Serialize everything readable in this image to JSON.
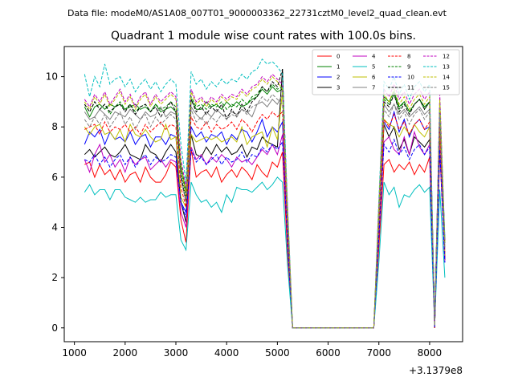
{
  "figure": {
    "suptitle": "Data file: modeM0/AS1A08_007T01_9000003362_22731cztM0_level2_quad_clean.evt",
    "title": "Quadrant 1 module wise count rates with 100.0s bins.",
    "x_offset_label": "+3.1379e8"
  },
  "chart_data": {
    "type": "line",
    "title": "Quadrant 1 module wise count rates with 100.0s bins.",
    "xlabel": "",
    "ylabel": "",
    "x_offset": 313790000,
    "xlim": [
      800,
      8650
    ],
    "ylim": [
      -0.55,
      11.2
    ],
    "xticks": [
      1000,
      2000,
      3000,
      4000,
      5000,
      6000,
      7000,
      8000
    ],
    "yticks": [
      0,
      2,
      4,
      6,
      8,
      10
    ],
    "grid": false,
    "legend_position": "top-right",
    "legend_columns": 4,
    "x": [
      1200,
      1300,
      1400,
      1500,
      1600,
      1700,
      1800,
      1900,
      2000,
      2100,
      2200,
      2300,
      2400,
      2500,
      2600,
      2700,
      2800,
      2900,
      3000,
      3100,
      3200,
      3300,
      3400,
      3500,
      3600,
      3700,
      3800,
      3900,
      4000,
      4100,
      4200,
      4300,
      4400,
      4500,
      4600,
      4700,
      4800,
      4900,
      5000,
      5100,
      5200,
      5300,
      6900,
      7000,
      7100,
      7200,
      7300,
      7400,
      7500,
      7600,
      7700,
      7800,
      7900,
      8000,
      8100,
      8200,
      8300
    ],
    "series": [
      {
        "name": "0",
        "color": "#ff0000",
        "dash": "solid",
        "values": [
          6.5,
          6.6,
          6.0,
          6.5,
          6.1,
          6.3,
          5.9,
          6.3,
          5.8,
          6.1,
          6.2,
          5.8,
          6.4,
          6.0,
          5.8,
          5.8,
          6.1,
          6.6,
          6.4,
          4.3,
          3.4,
          7.1,
          6.0,
          6.2,
          6.3,
          6.0,
          6.4,
          5.8,
          6.1,
          6.3,
          6.0,
          6.4,
          6.2,
          5.9,
          6.5,
          6.2,
          6.0,
          6.6,
          6.4,
          7.0,
          3.0,
          0.0,
          0.0,
          3.2,
          6.5,
          6.7,
          6.2,
          6.5,
          6.3,
          6.6,
          6.1,
          6.5,
          6.2,
          6.8,
          0.0,
          7.0,
          2.8
        ]
      },
      {
        "name": "1",
        "color": "#008000",
        "dash": "solid",
        "values": [
          8.8,
          8.4,
          8.8,
          8.9,
          8.7,
          8.9,
          8.8,
          8.9,
          8.7,
          8.8,
          8.9,
          8.7,
          8.8,
          8.6,
          8.9,
          8.6,
          8.7,
          8.8,
          8.6,
          6.5,
          5.4,
          9.1,
          8.7,
          8.7,
          9.0,
          8.8,
          8.9,
          8.7,
          9.0,
          8.8,
          9.0,
          8.8,
          8.9,
          9.1,
          9.2,
          9.5,
          9.3,
          9.6,
          9.4,
          9.5,
          4.5,
          0.0,
          0.0,
          4.7,
          9.2,
          9.0,
          9.4,
          8.8,
          9.0,
          8.6,
          8.9,
          9.1,
          8.8,
          9.0,
          0.2,
          8.8,
          3.5
        ]
      },
      {
        "name": "2",
        "color": "#0000ff",
        "dash": "solid",
        "values": [
          7.3,
          7.8,
          7.6,
          7.9,
          7.3,
          7.8,
          7.5,
          7.6,
          7.4,
          7.8,
          7.3,
          7.6,
          7.7,
          7.2,
          7.6,
          7.6,
          7.3,
          7.7,
          7.6,
          5.0,
          4.6,
          8.0,
          7.6,
          7.8,
          7.4,
          7.7,
          7.6,
          7.8,
          7.3,
          7.7,
          7.5,
          7.9,
          7.8,
          7.4,
          7.8,
          8.3,
          7.6,
          8.0,
          7.8,
          8.2,
          3.8,
          0.0,
          0.0,
          3.9,
          8.2,
          7.9,
          8.6,
          7.8,
          8.3,
          7.6,
          8.1,
          8.3,
          7.9,
          8.0,
          0.0,
          8.0,
          2.9
        ]
      },
      {
        "name": "3",
        "color": "#000000",
        "dash": "solid",
        "values": [
          6.9,
          7.1,
          6.8,
          7.0,
          7.2,
          6.9,
          6.8,
          7.0,
          7.3,
          6.9,
          6.8,
          6.7,
          7.3,
          7.0,
          6.9,
          6.6,
          7.0,
          7.3,
          7.0,
          5.0,
          4.2,
          7.7,
          6.9,
          6.8,
          7.2,
          6.9,
          7.3,
          7.0,
          7.2,
          6.9,
          7.0,
          7.3,
          6.8,
          7.2,
          7.1,
          7.6,
          7.4,
          7.3,
          7.2,
          10.3,
          3.6,
          0.0,
          0.0,
          3.7,
          8.1,
          7.6,
          8.0,
          7.1,
          7.5,
          6.9,
          7.6,
          7.4,
          7.2,
          7.5,
          0.0,
          7.6,
          2.7
        ]
      },
      {
        "name": "4",
        "color": "#c000c0",
        "dash": "solid",
        "values": [
          6.7,
          6.2,
          6.9,
          7.3,
          6.6,
          6.9,
          6.4,
          6.7,
          6.2,
          6.8,
          6.5,
          6.7,
          6.8,
          6.3,
          6.5,
          6.7,
          6.4,
          6.7,
          6.6,
          4.6,
          4.0,
          7.2,
          6.7,
          6.9,
          6.5,
          6.8,
          6.6,
          6.9,
          6.7,
          6.4,
          6.8,
          6.6,
          6.7,
          6.5,
          6.8,
          7.1,
          6.9,
          7.3,
          6.9,
          7.7,
          3.5,
          0.0,
          0.0,
          3.6,
          7.4,
          7.6,
          7.1,
          6.9,
          7.6,
          6.9,
          7.8,
          7.2,
          6.9,
          7.3,
          0.0,
          7.3,
          2.6
        ]
      },
      {
        "name": "5",
        "color": "#00bfbf",
        "dash": "solid",
        "values": [
          5.4,
          5.7,
          5.3,
          5.5,
          5.5,
          5.1,
          5.5,
          5.5,
          5.2,
          5.1,
          5.0,
          5.2,
          5.0,
          5.1,
          5.1,
          5.4,
          5.2,
          5.3,
          5.3,
          3.5,
          3.1,
          5.8,
          5.3,
          5.0,
          5.1,
          4.8,
          5.0,
          4.6,
          5.3,
          5.0,
          5.6,
          5.5,
          5.5,
          5.4,
          5.6,
          5.8,
          5.5,
          5.7,
          6.0,
          5.8,
          2.5,
          0.0,
          0.0,
          2.6,
          5.8,
          5.3,
          5.6,
          4.8,
          5.3,
          5.2,
          5.5,
          5.7,
          5.4,
          5.6,
          0.1,
          5.5,
          2.0
        ]
      },
      {
        "name": "6",
        "color": "#bfbf00",
        "dash": "solid",
        "values": [
          8.0,
          7.7,
          8.0,
          8.1,
          7.7,
          7.8,
          7.5,
          7.9,
          7.4,
          8.1,
          7.7,
          7.6,
          7.9,
          7.6,
          7.4,
          7.5,
          8.1,
          7.5,
          7.6,
          5.2,
          4.8,
          7.7,
          7.4,
          7.5,
          7.6,
          7.5,
          7.6,
          7.4,
          7.5,
          7.6,
          7.4,
          8.0,
          7.3,
          7.6,
          7.7,
          7.8,
          7.2,
          8.0,
          7.5,
          9.4,
          3.9,
          0.0,
          0.0,
          4.0,
          8.3,
          8.1,
          8.0,
          7.6,
          8.0,
          7.7,
          8.1,
          7.8,
          7.6,
          8.0,
          0.0,
          8.0,
          2.9
        ]
      },
      {
        "name": "7",
        "color": "#808080",
        "dash": "solid",
        "values": [
          8.6,
          8.3,
          8.4,
          8.7,
          8.5,
          8.3,
          8.6,
          8.5,
          8.4,
          8.7,
          8.5,
          8.3,
          8.6,
          8.4,
          8.5,
          8.8,
          8.4,
          8.6,
          8.5,
          6.0,
          5.0,
          8.8,
          8.5,
          8.3,
          8.6,
          8.4,
          8.7,
          8.5,
          8.4,
          8.6,
          8.5,
          8.7,
          8.6,
          8.4,
          8.9,
          9.0,
          8.8,
          9.1,
          8.9,
          9.3,
          4.2,
          0.0,
          0.0,
          4.3,
          8.9,
          8.6,
          8.9,
          8.5,
          8.7,
          8.4,
          8.6,
          8.8,
          8.5,
          8.7,
          0.1,
          8.6,
          3.2
        ]
      },
      {
        "name": "8",
        "color": "#ff0000",
        "dash": "dashed",
        "values": [
          7.9,
          8.0,
          8.1,
          7.7,
          8.2,
          7.8,
          8.0,
          7.9,
          8.1,
          7.8,
          8.0,
          7.7,
          8.1,
          7.8,
          8.0,
          8.2,
          7.9,
          8.1,
          8.0,
          5.6,
          4.8,
          8.4,
          8.0,
          7.9,
          8.2,
          7.8,
          8.1,
          7.9,
          8.0,
          8.2,
          7.9,
          8.3,
          8.1,
          7.8,
          8.2,
          8.5,
          8.3,
          8.6,
          8.4,
          8.6,
          3.9,
          0.0,
          0.0,
          4.0,
          8.3,
          8.0,
          8.5,
          7.9,
          8.2,
          7.7,
          8.1,
          8.3,
          7.9,
          8.2,
          0.0,
          8.1,
          3.0
        ]
      },
      {
        "name": "9",
        "color": "#008000",
        "dash": "dashed",
        "values": [
          8.9,
          8.6,
          9.0,
          8.7,
          8.9,
          8.5,
          8.8,
          9.0,
          8.7,
          8.9,
          8.6,
          8.8,
          8.9,
          8.6,
          8.9,
          8.7,
          8.8,
          9.0,
          8.8,
          6.3,
          5.2,
          9.2,
          8.8,
          8.9,
          8.7,
          8.9,
          8.8,
          9.0,
          8.7,
          8.9,
          8.8,
          9.1,
          8.9,
          9.2,
          9.3,
          9.6,
          9.4,
          9.7,
          9.5,
          9.6,
          4.5,
          0.0,
          0.0,
          4.6,
          9.1,
          8.9,
          9.3,
          8.7,
          9.0,
          8.6,
          8.9,
          9.1,
          8.7,
          9.0,
          0.2,
          8.9,
          3.4
        ]
      },
      {
        "name": "10",
        "color": "#0000ff",
        "dash": "dashed",
        "values": [
          6.7,
          6.6,
          6.9,
          6.5,
          6.8,
          6.4,
          6.7,
          6.9,
          6.5,
          6.8,
          6.4,
          6.7,
          6.9,
          6.5,
          6.8,
          6.6,
          6.7,
          6.9,
          6.8,
          5.0,
          4.4,
          7.1,
          6.6,
          6.8,
          6.5,
          6.7,
          6.9,
          6.5,
          6.8,
          6.6,
          6.7,
          7.0,
          6.6,
          6.9,
          6.8,
          7.2,
          7.0,
          7.3,
          7.1,
          7.4,
          3.5,
          0.0,
          0.0,
          3.6,
          7.3,
          7.0,
          7.5,
          6.9,
          7.2,
          6.7,
          7.1,
          7.3,
          6.9,
          7.2,
          0.0,
          7.1,
          2.6
        ]
      },
      {
        "name": "11",
        "color": "#000000",
        "dash": "dashed",
        "values": [
          8.9,
          8.6,
          9.0,
          8.7,
          8.9,
          8.6,
          8.8,
          8.9,
          8.6,
          8.9,
          8.5,
          8.8,
          8.9,
          8.6,
          8.8,
          8.4,
          8.7,
          9.0,
          8.6,
          6.1,
          5.0,
          9.1,
          8.6,
          8.8,
          8.5,
          8.8,
          8.6,
          8.9,
          8.3,
          8.7,
          8.4,
          8.9,
          8.6,
          9.0,
          9.2,
          9.6,
          9.4,
          9.8,
          9.6,
          10.3,
          4.6,
          0.0,
          0.0,
          4.7,
          9.0,
          8.8,
          9.3,
          8.6,
          8.9,
          8.5,
          8.9,
          9.1,
          8.7,
          9.0,
          0.2,
          8.8,
          3.3
        ]
      },
      {
        "name": "12",
        "color": "#c000c0",
        "dash": "dashed",
        "values": [
          9.1,
          8.8,
          9.3,
          9.0,
          9.4,
          8.9,
          9.2,
          9.5,
          9.0,
          9.3,
          8.8,
          9.2,
          9.4,
          8.9,
          9.3,
          9.0,
          9.2,
          9.4,
          9.2,
          6.7,
          5.6,
          9.5,
          9.0,
          9.2,
          8.9,
          9.2,
          9.0,
          9.3,
          9.1,
          9.3,
          9.2,
          9.5,
          9.3,
          9.6,
          9.7,
          10.0,
          9.8,
          10.1,
          9.9,
          9.7,
          4.8,
          0.0,
          0.0,
          4.9,
          9.5,
          9.2,
          9.7,
          9.1,
          9.4,
          8.9,
          9.3,
          9.5,
          9.1,
          9.4,
          0.1,
          9.3,
          3.5
        ]
      },
      {
        "name": "13",
        "color": "#00bfbf",
        "dash": "dashed",
        "values": [
          10.1,
          9.2,
          10.0,
          9.6,
          10.5,
          9.7,
          9.9,
          10.0,
          9.6,
          9.9,
          9.4,
          9.7,
          9.9,
          9.5,
          9.8,
          9.4,
          9.7,
          9.9,
          9.7,
          7.3,
          5.8,
          10.2,
          9.7,
          9.9,
          9.5,
          9.8,
          9.6,
          9.9,
          9.7,
          9.9,
          9.8,
          10.1,
          9.9,
          10.2,
          10.3,
          10.7,
          10.5,
          10.6,
          10.4,
          10.1,
          5.0,
          0.0,
          0.0,
          5.1,
          9.8,
          9.5,
          10.0,
          9.3,
          9.7,
          9.1,
          9.6,
          9.8,
          9.4,
          9.7,
          0.1,
          9.0,
          3.6
        ]
      },
      {
        "name": "14",
        "color": "#bfbf00",
        "dash": "dashed",
        "values": [
          9.0,
          8.7,
          9.2,
          8.9,
          9.3,
          8.8,
          9.1,
          9.4,
          8.9,
          9.2,
          8.7,
          9.1,
          9.3,
          8.8,
          9.2,
          8.9,
          9.1,
          9.3,
          9.1,
          6.4,
          5.3,
          9.4,
          8.9,
          9.1,
          8.8,
          9.1,
          8.9,
          9.2,
          9.0,
          9.2,
          9.1,
          9.4,
          9.2,
          9.5,
          9.6,
          9.9,
          9.7,
          10.0,
          9.8,
          9.5,
          4.7,
          0.0,
          0.0,
          4.8,
          9.3,
          9.0,
          9.5,
          8.9,
          9.2,
          8.7,
          9.1,
          9.3,
          8.9,
          9.2,
          0.1,
          9.1,
          3.4
        ]
      },
      {
        "name": "15",
        "color": "#808080",
        "dash": "dashed",
        "values": [
          8.3,
          8.0,
          8.4,
          8.1,
          8.5,
          8.0,
          8.3,
          8.6,
          8.1,
          8.4,
          7.9,
          8.3,
          8.5,
          8.0,
          8.4,
          8.1,
          8.3,
          8.5,
          8.3,
          5.9,
          5.0,
          8.7,
          8.2,
          8.4,
          8.1,
          8.4,
          8.2,
          8.5,
          8.3,
          8.5,
          8.4,
          8.7,
          8.5,
          8.8,
          8.9,
          9.2,
          9.0,
          9.3,
          9.1,
          8.9,
          4.3,
          0.0,
          0.0,
          4.4,
          8.7,
          8.4,
          8.9,
          8.3,
          8.6,
          8.1,
          8.5,
          8.7,
          8.3,
          8.6,
          0.1,
          8.5,
          3.2
        ]
      }
    ]
  }
}
